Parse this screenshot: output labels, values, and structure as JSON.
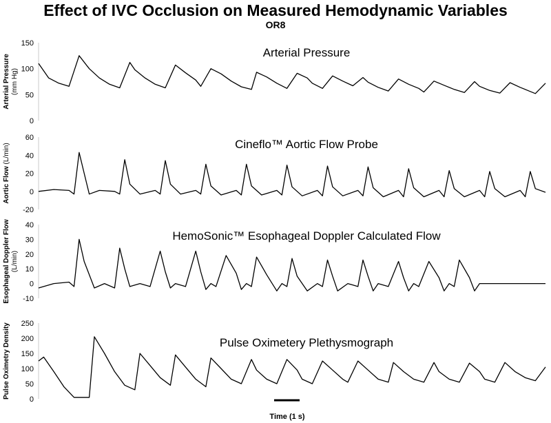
{
  "title": "Effect of IVC Occlusion on Measured Hemodynamic Variables",
  "subtitle": "OR8",
  "colors": {
    "trace": "#000000",
    "axis": "#c8c8c8",
    "text": "#000000"
  },
  "chart_data": [
    {
      "type": "line",
      "title": "Arterial Pressure",
      "ylabel": "Arterial Pressure",
      "ylabel_unit": "(mm Hg)",
      "ylim": [
        0,
        150
      ],
      "yticks": [
        0,
        50,
        100,
        150
      ],
      "xlim": [
        0,
        100
      ],
      "series": [
        {
          "x": [
            0,
            2,
            4,
            6,
            8,
            10,
            12,
            14,
            16,
            18,
            19,
            21,
            23,
            25,
            27,
            29,
            31,
            32,
            34,
            36,
            38,
            40,
            42,
            43,
            45,
            47,
            49,
            51,
            53,
            54,
            56,
            58,
            60,
            62,
            64,
            65,
            67,
            69,
            71,
            73,
            75,
            76,
            78,
            80,
            82,
            84,
            86,
            87,
            89,
            91,
            93,
            95,
            97,
            98,
            100
          ],
          "y": [
            110,
            82,
            72,
            66,
            125,
            100,
            82,
            70,
            63,
            112,
            98,
            82,
            70,
            63,
            107,
            92,
            78,
            66,
            100,
            90,
            76,
            65,
            60,
            93,
            84,
            72,
            62,
            91,
            82,
            72,
            62,
            86,
            76,
            67,
            83,
            74,
            64,
            57,
            80,
            70,
            62,
            55,
            76,
            68,
            60,
            54,
            75,
            66,
            58,
            53,
            73,
            64,
            56,
            52,
            72
          ]
        }
      ]
    },
    {
      "type": "line",
      "title": "Cineflo™ Aortic Flow Probe",
      "ylabel": "Aortic Flow",
      "ylabel_unit": "(L/min)",
      "ylim": [
        -20,
        60
      ],
      "yticks": [
        -20,
        0,
        20,
        40,
        60
      ],
      "xlim": [
        0,
        100
      ],
      "series": [
        {
          "x": [
            0,
            3,
            6,
            7,
            8,
            9,
            10,
            12,
            15,
            16,
            17,
            18,
            20,
            23,
            24,
            25,
            26,
            28,
            31,
            32,
            33,
            34,
            36,
            39,
            40,
            41,
            42,
            44,
            47,
            48,
            49,
            50,
            52,
            55,
            56,
            57,
            58,
            60,
            63,
            64,
            65,
            66,
            68,
            71,
            72,
            73,
            74,
            76,
            79,
            80,
            81,
            82,
            84,
            87,
            88,
            89,
            90,
            92,
            95,
            96,
            97,
            98,
            100
          ],
          "y": [
            0,
            2,
            1,
            -3,
            43,
            20,
            -3,
            1,
            0,
            -3,
            35,
            8,
            -3,
            1,
            -3,
            34,
            8,
            -3,
            1,
            -3,
            30,
            6,
            -4,
            1,
            -4,
            30,
            6,
            -4,
            1,
            -4,
            29,
            5,
            -5,
            1,
            -5,
            28,
            5,
            -5,
            1,
            -5,
            27,
            4,
            -6,
            1,
            -6,
            25,
            4,
            -6,
            1,
            -6,
            23,
            3,
            -6,
            1,
            -6,
            22,
            3,
            -6,
            1,
            -6,
            22,
            3,
            -1
          ]
        }
      ]
    },
    {
      "type": "line",
      "title": "HemoSonic™ Esophageal Doppler Calculated Flow",
      "ylabel": "Esophageal Doppler Flow",
      "ylabel_unit": "(L/min)",
      "ylim": [
        -10,
        40
      ],
      "yticks": [
        -10,
        0,
        10,
        20,
        30,
        40
      ],
      "xlim": [
        0,
        100
      ],
      "series": [
        {
          "x": [
            0,
            3,
            6,
            7,
            8,
            9,
            11,
            13,
            15,
            16,
            17,
            18,
            20,
            22,
            24,
            25,
            26,
            27,
            29,
            31,
            32,
            33,
            34,
            35,
            37,
            39,
            40,
            41,
            42,
            43,
            45,
            47,
            48,
            49,
            50,
            51,
            53,
            55,
            56,
            57,
            58,
            59,
            61,
            63,
            64,
            65,
            66,
            67,
            69,
            71,
            72,
            73,
            74,
            75,
            77,
            79,
            80,
            81,
            82,
            83,
            85,
            86,
            87,
            88,
            90,
            100
          ],
          "y": [
            -3,
            0,
            1,
            -2,
            30,
            15,
            -3,
            0,
            -3,
            24,
            10,
            -2,
            0,
            -2,
            22,
            8,
            -3,
            0,
            -2,
            22,
            8,
            -4,
            0,
            -2,
            19,
            7,
            -4,
            0,
            -2,
            18,
            6,
            -5,
            0,
            -2,
            17,
            5,
            -5,
            0,
            -2,
            16,
            5,
            -5,
            0,
            -2,
            16,
            5,
            -5,
            0,
            -2,
            15,
            4,
            -5,
            0,
            -2,
            15,
            4,
            -5,
            0,
            -2,
            16,
            4,
            -5,
            0,
            0,
            0,
            0
          ]
        }
      ]
    },
    {
      "type": "line",
      "title": "Pulse Oximetery Plethysmograph",
      "ylabel": "Pulse Oximetry Density",
      "ylabel_unit": "",
      "ylim": [
        0,
        250
      ],
      "yticks": [
        0,
        50,
        100,
        150,
        200,
        250
      ],
      "xlim": [
        0,
        100
      ],
      "series": [
        {
          "x": [
            0,
            1,
            3,
            5,
            7,
            8,
            10,
            11,
            13,
            15,
            17,
            19,
            20,
            22,
            24,
            26,
            27,
            29,
            31,
            33,
            34,
            36,
            38,
            40,
            42,
            43,
            45,
            47,
            49,
            51,
            52,
            54,
            56,
            58,
            60,
            61,
            63,
            65,
            67,
            69,
            70,
            72,
            74,
            76,
            78,
            79,
            81,
            83,
            85,
            87,
            88,
            90,
            92,
            94,
            96,
            98,
            100
          ],
          "y": [
            125,
            138,
            90,
            40,
            5,
            5,
            5,
            205,
            150,
            90,
            45,
            30,
            150,
            110,
            70,
            45,
            145,
            105,
            65,
            40,
            135,
            100,
            65,
            50,
            130,
            95,
            65,
            50,
            130,
            95,
            65,
            50,
            125,
            95,
            65,
            55,
            125,
            95,
            65,
            55,
            120,
            90,
            65,
            55,
            120,
            90,
            65,
            55,
            118,
            90,
            65,
            55,
            120,
            90,
            70,
            60,
            105
          ]
        }
      ]
    }
  ],
  "scale_bar": {
    "label": "Time (1 s)"
  }
}
